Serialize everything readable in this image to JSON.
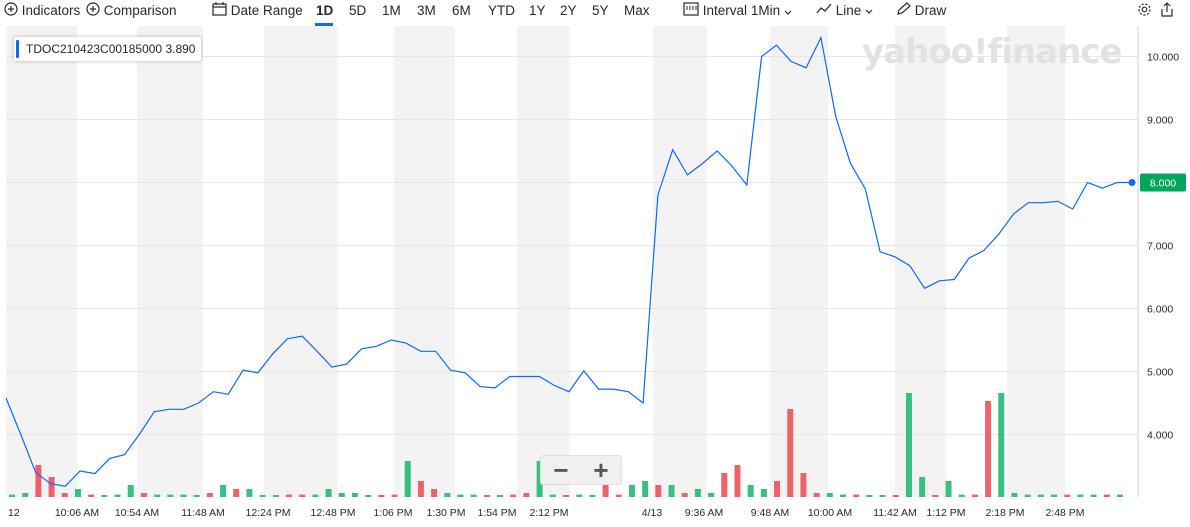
{
  "toolbar": {
    "indicators_label": "Indicators",
    "comparison_label": "Comparison",
    "date_range_label": "Date Range",
    "ranges": [
      "1D",
      "5D",
      "1M",
      "3M",
      "6M",
      "YTD",
      "1Y",
      "2Y",
      "5Y",
      "Max"
    ],
    "active_range": "1D",
    "interval_label": "Interval",
    "interval_value": "1Min",
    "chart_type_label": "Line",
    "draw_label": "Draw"
  },
  "tooltip": {
    "symbol": "TDOC210423C00185000",
    "value": "3.890"
  },
  "logo": "yahoo!finance",
  "colors": {
    "line": "#0f69ff",
    "up_volume": "#3bbf80",
    "down_volume": "#f0626a",
    "band": "#f3f3f3",
    "last_badge": "#00a65a"
  },
  "chart_data": {
    "type": "line",
    "last_value_label": "8.000",
    "ylim": [
      3.0,
      10.5
    ],
    "yticks": [
      "4.000",
      "5.000",
      "6.000",
      "7.000",
      "8.000",
      "9.000",
      "10.000"
    ],
    "xtick_labels": [
      "12",
      "10:06 AM",
      "10:54 AM",
      "11:48 AM",
      "12:24 PM",
      "12:48 PM",
      "1:06 PM",
      "1:30 PM",
      "1:54 PM",
      "2:12 PM",
      "4/13",
      "9:36 AM",
      "9:48 AM",
      "10:00 AM",
      "11:42 AM",
      "1:12 PM",
      "2:18 PM",
      "2:48 PM"
    ],
    "series": [
      {
        "values": [
          4.58,
          4.0,
          3.4,
          3.22,
          3.18,
          3.42,
          3.38,
          3.62,
          3.68,
          4.0,
          4.36,
          4.4,
          4.4,
          4.5,
          4.68,
          4.64,
          5.02,
          4.98,
          5.28,
          5.52,
          5.56,
          5.32,
          5.07,
          5.12,
          5.36,
          5.4,
          5.5,
          5.45,
          5.32,
          5.32,
          5.02,
          4.98,
          4.76,
          4.74,
          4.92,
          4.92,
          4.92,
          4.78,
          4.68,
          5.01,
          4.72,
          4.72,
          4.68,
          4.5,
          7.8,
          8.52,
          8.12,
          8.3,
          8.5,
          8.26,
          7.96,
          10.0,
          10.18,
          9.92,
          9.82,
          10.3,
          9.05,
          8.3,
          7.9,
          6.9,
          6.82,
          6.68,
          6.32,
          6.44,
          6.46,
          6.8,
          6.92,
          7.18,
          7.5,
          7.68,
          7.68,
          7.7,
          7.58,
          8.0,
          7.91,
          8.0,
          8.0
        ]
      }
    ],
    "volume": {
      "directions": [
        "up",
        "up",
        "down",
        "down",
        "down",
        "up",
        "down",
        "up",
        "up",
        "up",
        "down",
        "up",
        "up",
        "up",
        "up",
        "down",
        "up",
        "down",
        "up",
        "up",
        "up",
        "down",
        "down",
        "up",
        "up",
        "up",
        "up",
        "up",
        "down",
        "down",
        "up",
        "down",
        "down",
        "up",
        "up",
        "up",
        "down",
        "up",
        "down",
        "down",
        "up",
        "up",
        "down",
        "up",
        "up",
        "down",
        "down",
        "up",
        "up",
        "down",
        "up",
        "down",
        "up",
        "up",
        "down",
        "down",
        "up",
        "up",
        "down",
        "down",
        "down",
        "down",
        "up",
        "up",
        "down",
        "up",
        "up",
        "down",
        "up",
        "up",
        "down",
        "up",
        "up",
        "down",
        "down",
        "up",
        "up",
        "up",
        "up",
        "up",
        "down",
        "up",
        "up",
        "down",
        "up"
      ],
      "values": [
        0.06,
        0.1,
        0.8,
        0.5,
        0.1,
        0.2,
        0.06,
        0.03,
        0.06,
        0.3,
        0.1,
        0.06,
        0.06,
        0.06,
        0.03,
        0.1,
        0.3,
        0.2,
        0.2,
        0.03,
        0.03,
        0.06,
        0.06,
        0.06,
        0.2,
        0.1,
        0.1,
        0.03,
        0.03,
        0.06,
        0.9,
        0.4,
        0.2,
        0.1,
        0.06,
        0.06,
        0.03,
        0.03,
        0.06,
        0.1,
        0.9,
        0.06,
        0.03,
        0.06,
        0.03,
        0.3,
        0.06,
        0.3,
        0.4,
        0.3,
        0.3,
        0.1,
        0.2,
        0.1,
        0.6,
        0.8,
        0.3,
        0.2,
        0.4,
        2.2,
        0.6,
        0.1,
        0.1,
        0.06,
        0.06,
        0.03,
        0.03,
        0.03,
        2.6,
        0.5,
        0.03,
        0.4,
        0.06,
        0.06,
        2.4,
        2.6,
        0.1,
        0.06,
        0.06,
        0.06,
        0.06,
        0.06,
        0.06,
        0.06,
        0.06
      ]
    }
  },
  "zoom": {
    "minus": "−",
    "plus": "+"
  }
}
